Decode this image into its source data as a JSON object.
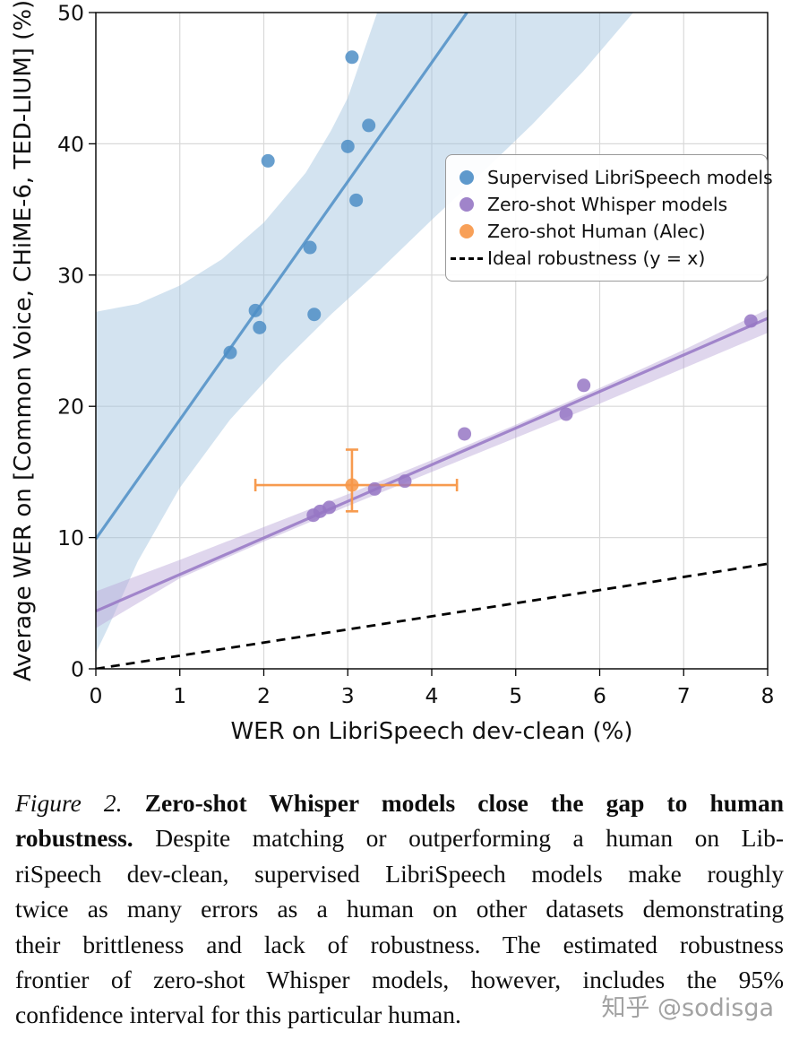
{
  "figure": {
    "watermark": "知乎 @sodisga"
  },
  "caption": {
    "lines": [
      {
        "segments": [
          {
            "text": "Figure 2.",
            "style": "italic"
          },
          {
            "text": " ",
            "style": "plain"
          },
          {
            "text": "Zero-shot Whisper models close the gap to human",
            "style": "bold"
          }
        ]
      },
      {
        "segments": [
          {
            "text": "robustness.",
            "style": "bold"
          },
          {
            "text": " Despite matching or outperforming a human on Lib-",
            "style": "plain"
          }
        ]
      },
      {
        "segments": [
          {
            "text": "riSpeech dev-clean, supervised LibriSpeech models make roughly",
            "style": "plain"
          }
        ]
      },
      {
        "segments": [
          {
            "text": "twice as many errors as a human on other datasets demonstrating",
            "style": "plain"
          }
        ]
      },
      {
        "segments": [
          {
            "text": "their brittleness and lack of robustness. The estimated robustness",
            "style": "plain"
          }
        ]
      },
      {
        "segments": [
          {
            "text": "frontier of zero-shot Whisper models, however, includes the 95%",
            "style": "plain"
          }
        ]
      },
      {
        "last": true,
        "segments": [
          {
            "text": "confidence interval for this particular human.",
            "style": "plain"
          }
        ]
      }
    ]
  },
  "chart_data": {
    "type": "scatter",
    "title": "",
    "xlabel": "WER on LibriSpeech dev-clean (%)",
    "ylabel": "Average WER on [Common Voice, CHiME-6, TED-LIUM] (%)",
    "xlim": [
      0,
      8
    ],
    "ylim": [
      0,
      50
    ],
    "xticks": [
      0,
      1,
      2,
      3,
      4,
      5,
      6,
      7,
      8
    ],
    "yticks": [
      0,
      10,
      20,
      30,
      40,
      50
    ],
    "grid": true,
    "legend_position": "upper right",
    "colors": {
      "grid": "#d9d9d9",
      "frame": "#000000",
      "background": "#ffffff"
    },
    "series": [
      {
        "name": "Supervised LibriSpeech models",
        "type": "scatter",
        "color": "#4d8ec6",
        "band_color": "#9dc1de",
        "points": [
          [
            1.6,
            24.1
          ],
          [
            1.9,
            27.3
          ],
          [
            1.95,
            26.0
          ],
          [
            2.05,
            38.7
          ],
          [
            2.55,
            32.1
          ],
          [
            2.6,
            27.0
          ],
          [
            3.0,
            39.8
          ],
          [
            3.05,
            46.6
          ],
          [
            3.1,
            35.7
          ],
          [
            3.25,
            41.4
          ]
        ],
        "trend": [
          [
            0,
            9.9
          ],
          [
            4.42,
            50
          ]
        ],
        "band": [
          [
            0,
            27.2
          ],
          [
            0.5,
            27.8
          ],
          [
            1,
            29.2
          ],
          [
            1.5,
            31.2
          ],
          [
            2,
            34.0
          ],
          [
            2.5,
            37.8
          ],
          [
            2.8,
            41.0
          ],
          [
            3.0,
            43.5
          ],
          [
            3.35,
            50
          ],
          [
            6.4,
            50
          ],
          [
            5.8,
            45.5
          ],
          [
            5.2,
            41.5
          ],
          [
            4.6,
            37.8
          ],
          [
            4.0,
            34.2
          ],
          [
            3.4,
            30.5
          ],
          [
            2.8,
            27.0
          ],
          [
            2.2,
            23.2
          ],
          [
            1.6,
            19.0
          ],
          [
            1.0,
            13.8
          ],
          [
            0.5,
            8.2
          ],
          [
            0.15,
            3.2
          ],
          [
            0,
            1.2
          ]
        ]
      },
      {
        "name": "Zero-shot Whisper models",
        "type": "scatter",
        "color": "#9677c4",
        "band_color": "#b9a3d8",
        "points": [
          [
            2.59,
            11.7
          ],
          [
            2.67,
            12.0
          ],
          [
            2.78,
            12.3
          ],
          [
            3.32,
            13.7
          ],
          [
            3.68,
            14.3
          ],
          [
            4.39,
            17.9
          ],
          [
            5.6,
            19.4
          ],
          [
            5.81,
            21.6
          ],
          [
            7.8,
            26.5
          ]
        ],
        "trend": [
          [
            0,
            4.4
          ],
          [
            8,
            26.7
          ]
        ],
        "band": [
          [
            0,
            5.9
          ],
          [
            1,
            8.3
          ],
          [
            2,
            10.8
          ],
          [
            3,
            13.3
          ],
          [
            4,
            15.9
          ],
          [
            5,
            18.6
          ],
          [
            6,
            21.4
          ],
          [
            7,
            24.3
          ],
          [
            8,
            27.4
          ],
          [
            8,
            25.6
          ],
          [
            7,
            22.9
          ],
          [
            6,
            20.2
          ],
          [
            5,
            17.6
          ],
          [
            4,
            15.0
          ],
          [
            3,
            12.4
          ],
          [
            2,
            9.7
          ],
          [
            1,
            6.9
          ],
          [
            0,
            3.1
          ]
        ]
      },
      {
        "name": "Zero-shot Human (Alec)",
        "type": "scatter",
        "color": "#f79646",
        "points": [
          [
            3.05,
            14.0
          ]
        ],
        "xerr": [
          1.9,
          4.3
        ],
        "yerr": [
          12.0,
          16.7
        ]
      },
      {
        "name": "Ideal robustness (y = x)",
        "type": "line",
        "color": "#000000",
        "dash": "10 7",
        "trend": [
          [
            0,
            0
          ],
          [
            8,
            8
          ]
        ]
      }
    ]
  }
}
